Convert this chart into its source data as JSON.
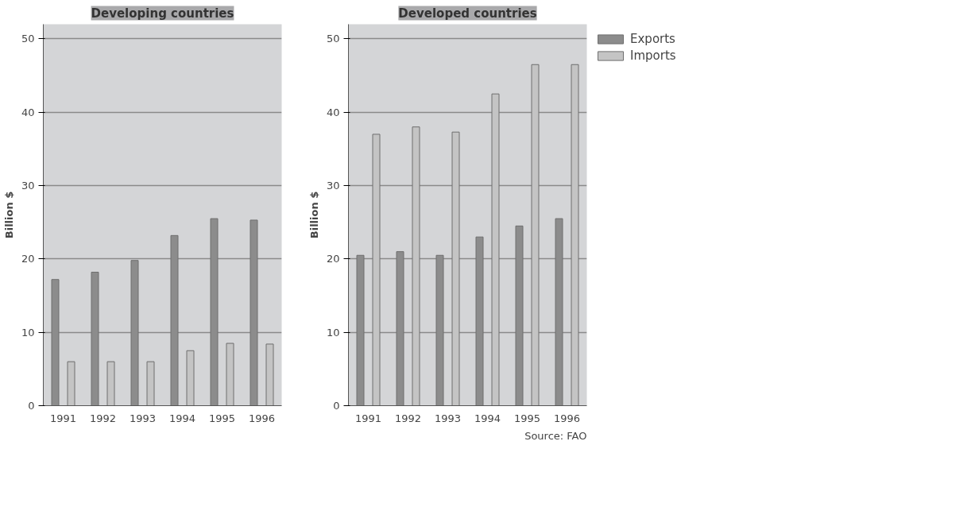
{
  "chart_data": [
    {
      "type": "bar",
      "title": "Developing countries",
      "ylabel": "Billion $",
      "categories": [
        "1991",
        "1992",
        "1993",
        "1994",
        "1995",
        "1996"
      ],
      "series": [
        {
          "color": "#8c8c8c",
          "values": [
            17.2,
            18.2,
            19.8,
            23.2,
            25.5,
            25.3
          ]
        },
        {
          "color": "#c4c4c4",
          "values": [
            6,
            6,
            6,
            7.5,
            8.5,
            8.4
          ]
        }
      ],
      "ylim": [
        0,
        52
      ],
      "yticks": [
        0,
        10,
        20,
        30,
        40,
        50
      ],
      "grid": "y",
      "legend": false
    },
    {
      "type": "bar",
      "title": "Developed countries",
      "ylabel": "Billion $",
      "categories": [
        "1991",
        "1992",
        "1993",
        "1994",
        "1995",
        "1996"
      ],
      "series": [
        {
          "name": "Exports",
          "color": "#8c8c8c",
          "values": [
            20.5,
            21,
            20.5,
            23,
            24.5,
            25.5
          ]
        },
        {
          "name": "Imports",
          "color": "#c4c4c4",
          "values": [
            37,
            38,
            37.3,
            42.5,
            46.5,
            46.5
          ]
        }
      ],
      "ylim": [
        0,
        52
      ],
      "yticks": [
        0,
        10,
        20,
        30,
        40,
        50
      ],
      "grid": "y",
      "legend": "right",
      "annotations": [
        "Source: FAO"
      ]
    }
  ]
}
